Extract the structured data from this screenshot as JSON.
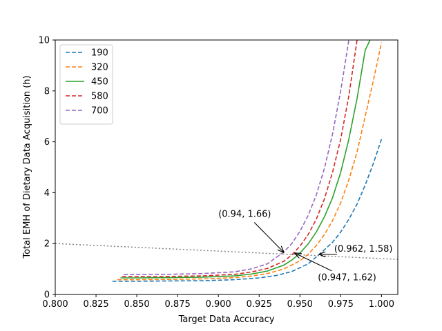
{
  "chart_data": {
    "type": "line",
    "xlabel": "Target Data Accuracy",
    "ylabel": "Total EMH of Dietary Data Acquisition (h)",
    "xlim": [
      0.8,
      1.01
    ],
    "ylim": [
      0,
      10
    ],
    "xticks": [
      "0.800",
      "0.825",
      "0.850",
      "0.875",
      "0.900",
      "0.925",
      "0.950",
      "0.975",
      "1.000"
    ],
    "yticks": [
      "0",
      "2",
      "4",
      "6",
      "8",
      "10"
    ],
    "grid": false,
    "legend_position": "top-left",
    "series": [
      {
        "name": "190",
        "color": "#1f77b4",
        "dash": "dashed",
        "x": [
          0.835,
          0.85,
          0.87,
          0.89,
          0.91,
          0.925,
          0.935,
          0.945,
          0.955,
          0.962,
          0.97,
          0.975,
          0.98,
          0.985,
          0.99,
          0.995,
          1.0
        ],
        "y": [
          0.52,
          0.52,
          0.53,
          0.54,
          0.58,
          0.65,
          0.74,
          0.9,
          1.2,
          1.58,
          2.05,
          2.45,
          2.95,
          3.55,
          4.3,
          5.15,
          6.1
        ]
      },
      {
        "name": "320",
        "color": "#ff7f0e",
        "dash": "dashed",
        "x": [
          0.838,
          0.85,
          0.87,
          0.89,
          0.91,
          0.92,
          0.93,
          0.94,
          0.95,
          0.955,
          0.96,
          0.965,
          0.97,
          0.975,
          0.98,
          0.985,
          0.99,
          0.995,
          1.0
        ],
        "y": [
          0.58,
          0.58,
          0.59,
          0.61,
          0.66,
          0.72,
          0.82,
          1.0,
          1.32,
          1.58,
          1.92,
          2.35,
          2.9,
          3.6,
          4.5,
          5.6,
          7.0,
          8.4,
          9.9
        ]
      },
      {
        "name": "450",
        "color": "#2ca02c",
        "dash": "solid",
        "x": [
          0.84,
          0.85,
          0.87,
          0.89,
          0.91,
          0.92,
          0.93,
          0.94,
          0.945,
          0.95,
          0.955,
          0.96,
          0.965,
          0.97,
          0.975,
          0.98,
          0.985,
          0.99,
          0.993
        ],
        "y": [
          0.65,
          0.65,
          0.66,
          0.68,
          0.73,
          0.8,
          0.92,
          1.15,
          1.35,
          1.62,
          1.98,
          2.45,
          3.05,
          3.8,
          4.8,
          6.1,
          7.7,
          9.6,
          10.0
        ]
      },
      {
        "name": "580",
        "color": "#d62728",
        "dash": "dashed",
        "x": [
          0.841,
          0.85,
          0.87,
          0.89,
          0.91,
          0.92,
          0.93,
          0.94,
          0.945,
          0.95,
          0.955,
          0.96,
          0.965,
          0.97,
          0.975,
          0.98,
          0.985
        ],
        "y": [
          0.7,
          0.7,
          0.71,
          0.73,
          0.79,
          0.88,
          1.02,
          1.3,
          1.55,
          1.9,
          2.35,
          2.95,
          3.75,
          4.8,
          6.1,
          7.8,
          10.0
        ]
      },
      {
        "name": "700",
        "color": "#9467bd",
        "dash": "dashed",
        "x": [
          0.842,
          0.85,
          0.87,
          0.89,
          0.91,
          0.92,
          0.93,
          0.94,
          0.945,
          0.95,
          0.955,
          0.96,
          0.965,
          0.97,
          0.975,
          0.98
        ],
        "y": [
          0.78,
          0.78,
          0.79,
          0.82,
          0.89,
          1.0,
          1.2,
          1.66,
          2.0,
          2.48,
          3.1,
          3.9,
          4.95,
          6.3,
          8.0,
          10.0
        ]
      }
    ],
    "reference_line": {
      "color": "#808080",
      "dash": "dotted",
      "x": [
        0.8,
        1.01
      ],
      "y": [
        2.0,
        1.38
      ]
    },
    "annotations": [
      {
        "text": "(0.94, 1.66)",
        "point": [
          0.94,
          1.66
        ],
        "text_pos": [
          0.9,
          3.05
        ],
        "anchor": "start"
      },
      {
        "text": "(0.947, 1.62)",
        "point": [
          0.947,
          1.62
        ],
        "text_pos": [
          0.961,
          0.55
        ],
        "anchor": "start"
      },
      {
        "text": "(0.962, 1.58)",
        "point": [
          0.962,
          1.58
        ],
        "text_pos": [
          0.971,
          1.68
        ],
        "anchor": "start"
      }
    ]
  }
}
